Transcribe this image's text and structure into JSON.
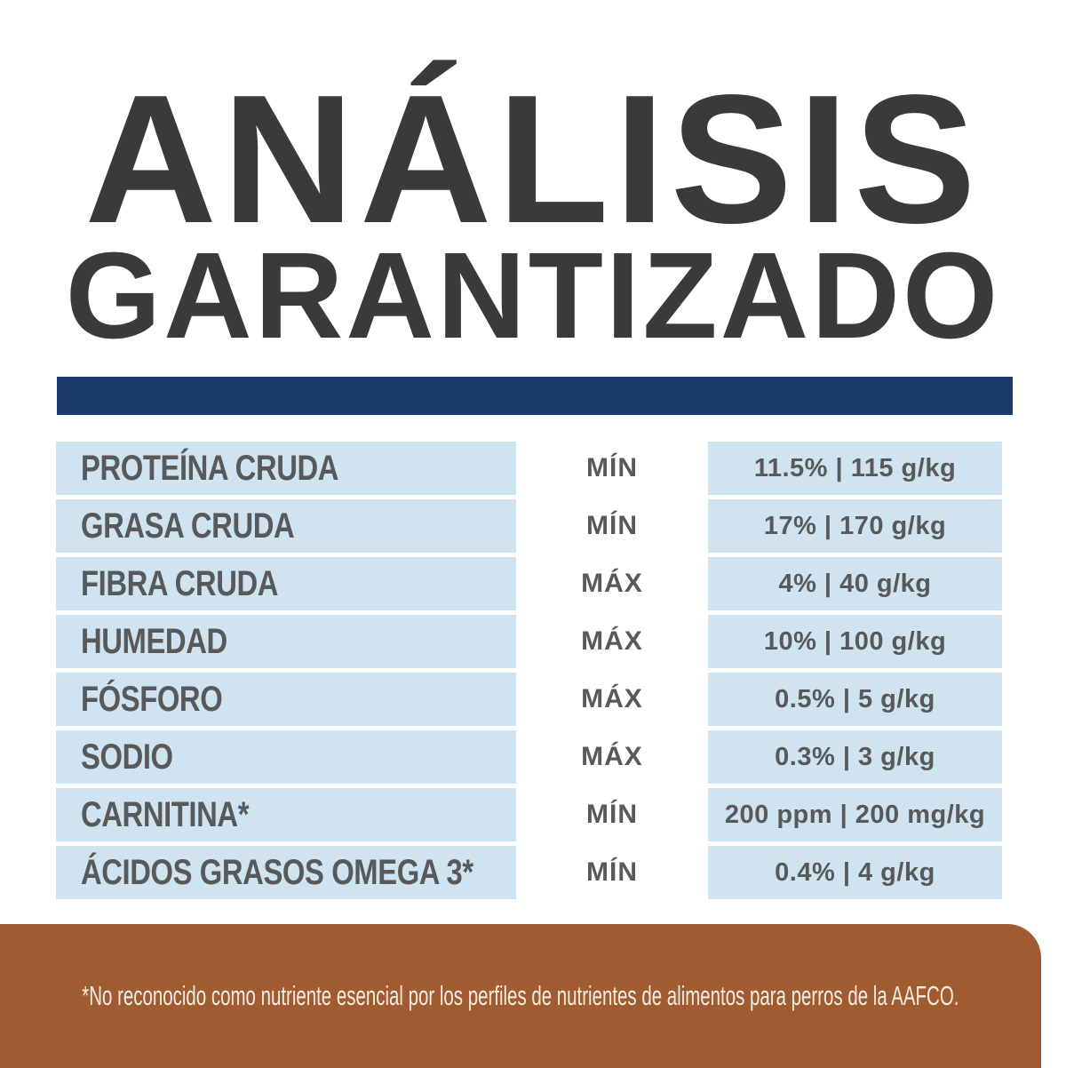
{
  "title": {
    "line1": "ANÁLISIS",
    "line2": "GARANTIZADO"
  },
  "colors": {
    "title": "#3a3a3c",
    "divider": "#1c3a6b",
    "row_bg": "#cfe3f1",
    "row_text": "#58595b",
    "footer_bg": "#a05b30",
    "footer_text": "#f3ecdf"
  },
  "table": {
    "rows": [
      {
        "nutrient": "PROTEÍNA CRUDA",
        "limit": "MÍN",
        "value": "11.5% | 115 g/kg"
      },
      {
        "nutrient": "GRASA CRUDA",
        "limit": "MÍN",
        "value": "17% | 170 g/kg"
      },
      {
        "nutrient": "FIBRA CRUDA",
        "limit": "MÁX",
        "value": "4% | 40 g/kg"
      },
      {
        "nutrient": "HUMEDAD",
        "limit": "MÁX",
        "value": "10% | 100 g/kg"
      },
      {
        "nutrient": "FÓSFORO",
        "limit": "MÁX",
        "value": "0.5% | 5 g/kg"
      },
      {
        "nutrient": "SODIO",
        "limit": "MÁX",
        "value": "0.3% | 3 g/kg"
      },
      {
        "nutrient": "CARNITINA*",
        "limit": "MÍN",
        "value": "200 ppm | 200 mg/kg"
      },
      {
        "nutrient": "ÁCIDOS GRASOS OMEGA 3*",
        "limit": "MÍN",
        "value": "0.4% | 4 g/kg"
      }
    ]
  },
  "footer": {
    "note": "*No reconocido como nutriente esencial por los perfiles de nutrientes de alimentos para perros de la AAFCO."
  }
}
